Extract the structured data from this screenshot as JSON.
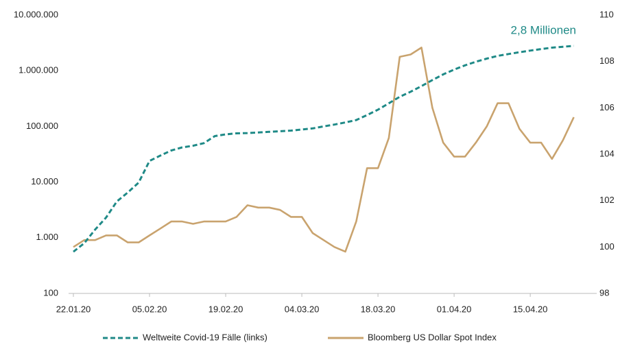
{
  "chart_data": {
    "type": "line",
    "annotations": [
      "2,8 Millionen"
    ],
    "categories": [
      "22.01.20",
      null,
      null,
      null,
      null,
      null,
      null,
      "05.02.20",
      null,
      null,
      null,
      null,
      null,
      null,
      "19.02.20",
      null,
      null,
      null,
      null,
      null,
      null,
      "04.03.20",
      null,
      null,
      null,
      null,
      null,
      null,
      "18.03.20",
      null,
      null,
      null,
      null,
      null,
      null,
      "01.04.20",
      null,
      null,
      null,
      null,
      null,
      null,
      "15.04.20",
      null,
      null,
      null,
      null
    ],
    "series": [
      {
        "name": "Weltweite Covid-19 Fälle (links)",
        "color": "#1f8a87",
        "dash": true,
        "axis": "y",
        "values": [
          560,
          800,
          1400,
          2300,
          4500,
          6500,
          9800,
          24000,
          30000,
          37000,
          42000,
          45000,
          50000,
          67000,
          72000,
          75000,
          76000,
          78000,
          80000,
          82000,
          84000,
          88000,
          92000,
          100000,
          108000,
          118000,
          130000,
          160000,
          200000,
          260000,
          340000,
          420000,
          530000,
          680000,
          860000,
          1050000,
          1250000,
          1450000,
          1650000,
          1850000,
          2000000,
          2150000,
          2300000,
          2450000,
          2600000,
          2700000,
          2800000
        ]
      },
      {
        "name": "Bloomberg US Dollar Spot Index",
        "color": "#c9a36e",
        "dash": false,
        "axis": "y2",
        "values": [
          100.0,
          100.3,
          100.3,
          100.5,
          100.5,
          100.2,
          100.2,
          100.5,
          100.8,
          101.1,
          101.1,
          101.0,
          101.1,
          101.1,
          101.1,
          101.3,
          101.8,
          101.7,
          101.7,
          101.6,
          101.3,
          101.3,
          100.6,
          100.3,
          100.0,
          99.8,
          101.1,
          103.4,
          103.4,
          104.7,
          108.2,
          108.3,
          108.6,
          106.0,
          104.5,
          103.9,
          103.9,
          104.5,
          105.2,
          106.2,
          106.2,
          105.1,
          104.5,
          104.5,
          103.8,
          104.6,
          105.6
        ]
      }
    ],
    "ylog": true,
    "ylim": [
      100,
      10000000
    ],
    "yticks": [
      {
        "value": 100,
        "label": "100"
      },
      {
        "value": 1000,
        "label": "1.000"
      },
      {
        "value": 10000,
        "label": "10.000"
      },
      {
        "value": 100000,
        "label": "100.000"
      },
      {
        "value": 1000000,
        "label": "1.000.000"
      },
      {
        "value": 10000000,
        "label": "10.000.000"
      }
    ],
    "y2lim": [
      98,
      110
    ],
    "y2ticks": [
      98,
      100,
      102,
      104,
      106,
      108,
      110
    ],
    "legend": "bottom"
  }
}
